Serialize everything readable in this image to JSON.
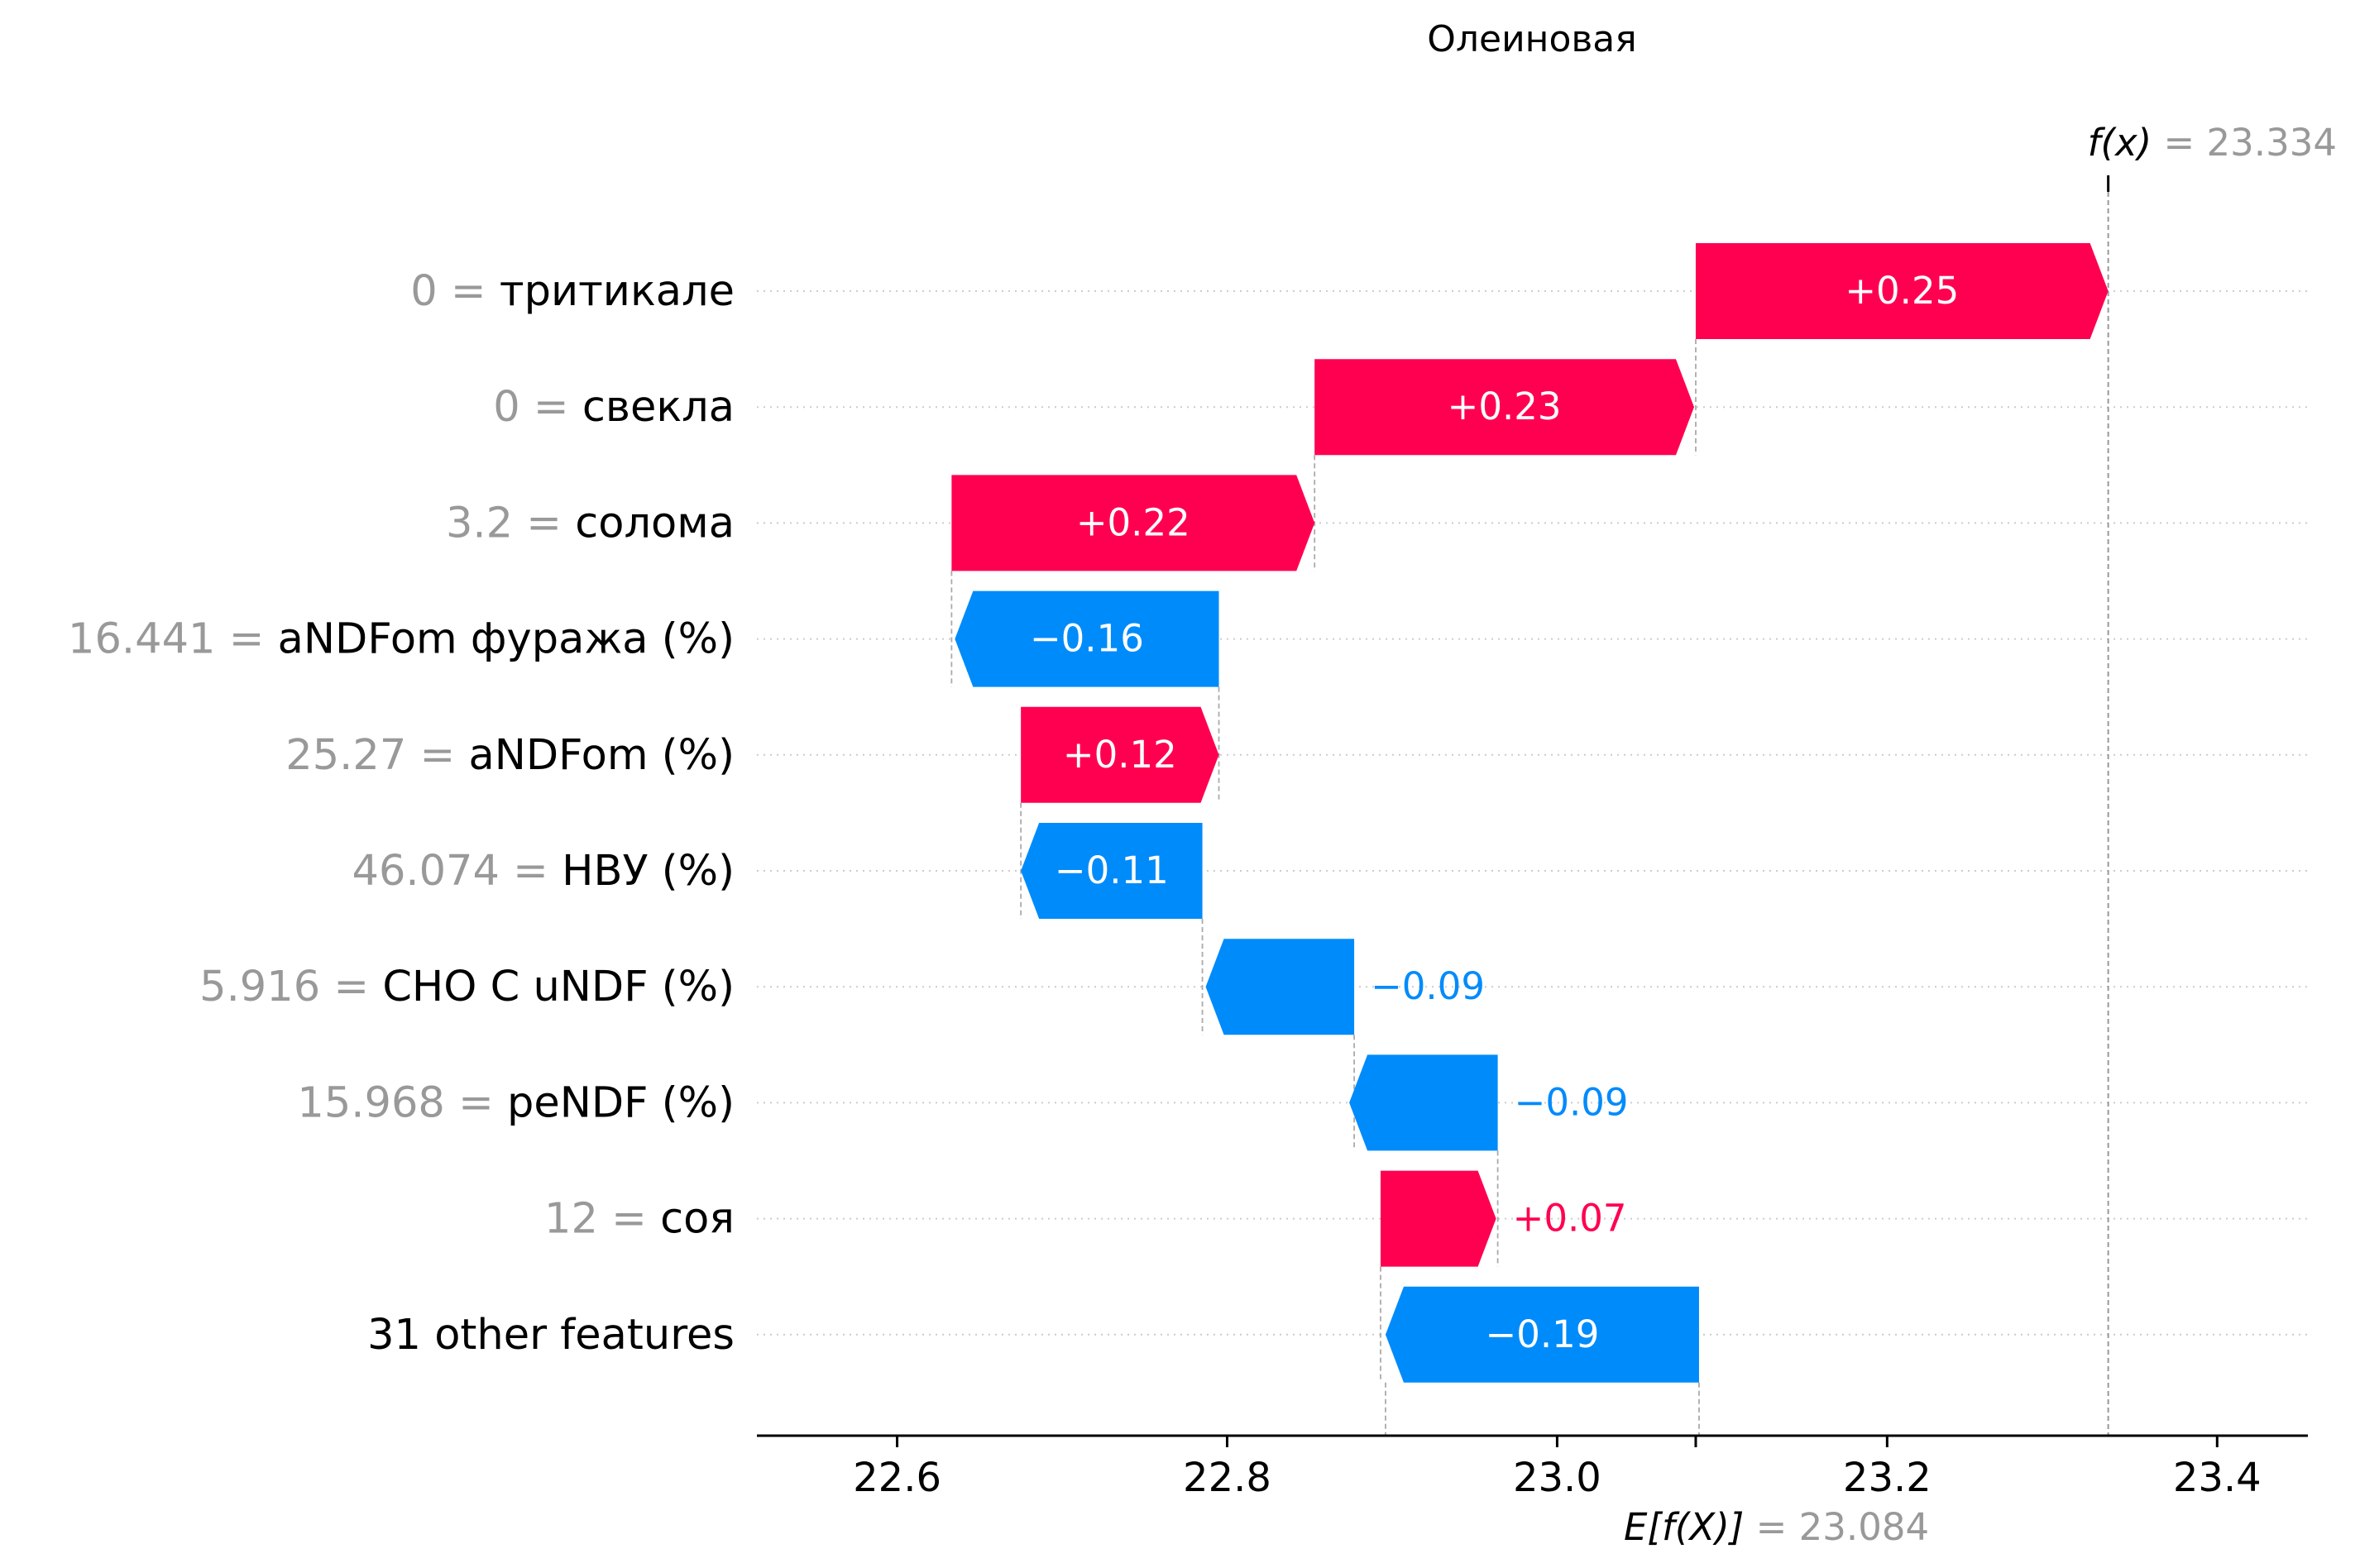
{
  "chart_data": {
    "type": "waterfall",
    "title": "Олеиновая",
    "base_value": 23.084,
    "base_label": "E[f(X)]",
    "base_value_text": "23.084",
    "output_value": 23.334,
    "output_label": "f(x)",
    "output_value_text": "23.334",
    "xlim": [
      22.515,
      23.455
    ],
    "xticks": [
      22.6,
      22.8,
      23.0,
      23.2,
      23.4
    ],
    "xtick_labels": [
      "22.6",
      "22.8",
      "23.0",
      "23.2",
      "23.4"
    ],
    "features": [
      {
        "value": "0",
        "name": "тритикале",
        "contribution": 0.25,
        "start": 23.084,
        "label": "+0.25"
      },
      {
        "value": "0",
        "name": "свекла",
        "contribution": 0.23,
        "start": 22.853,
        "label": "+0.23"
      },
      {
        "value": "3.2",
        "name": "солома",
        "contribution": 0.22,
        "start": 22.633,
        "label": "+0.22"
      },
      {
        "value": "16.441",
        "name": "aNDFom фуража (%)",
        "contribution": -0.16,
        "start": 22.795,
        "label": "−0.16"
      },
      {
        "value": "25.27",
        "name": "aNDFom (%)",
        "contribution": 0.12,
        "start": 22.675,
        "label": "+0.12"
      },
      {
        "value": "46.074",
        "name": "НВУ (%)",
        "contribution": -0.11,
        "start": 22.785,
        "label": "−0.11"
      },
      {
        "value": "5.916",
        "name": "СНО С uNDF (%)",
        "contribution": -0.09,
        "start": 22.877,
        "label": "−0.09"
      },
      {
        "value": "15.968",
        "name": "peNDF (%)",
        "contribution": -0.09,
        "start": 22.964,
        "label": "−0.09"
      },
      {
        "value": "12",
        "name": "соя",
        "contribution": 0.07,
        "start": 22.893,
        "label": "+0.07"
      },
      {
        "value": "",
        "name": "31 other features",
        "contribution": -0.19,
        "start": 23.086,
        "label": "−0.19"
      }
    ],
    "colors": {
      "positive": "#ff0051",
      "negative": "#008bfb",
      "muted": "#999999",
      "text": "#000000"
    }
  }
}
